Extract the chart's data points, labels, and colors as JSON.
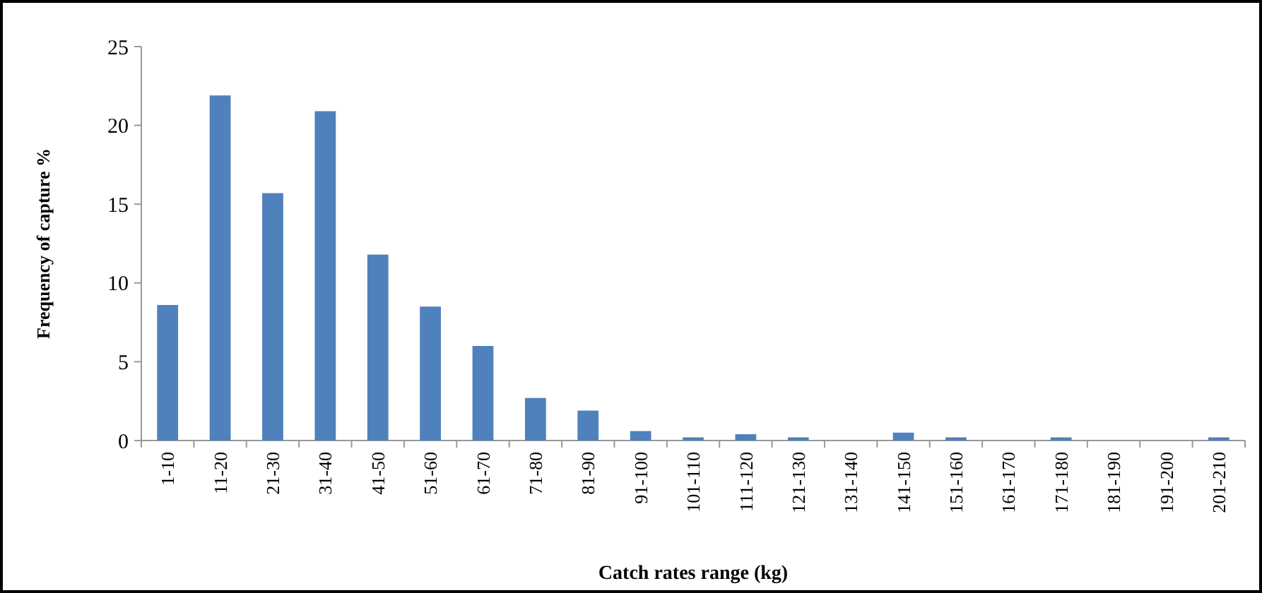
{
  "chart_data": {
    "type": "bar",
    "xlabel": "Catch rates range (kg)",
    "ylabel": "Frequency of capture %",
    "categories": [
      "1-10",
      "11-20",
      "21-30",
      "31-40",
      "41-50",
      "51-60",
      "61-70",
      "71-80",
      "81-90",
      "91-100",
      "101-110",
      "111-120",
      "121-130",
      "131-140",
      "141-150",
      "151-160",
      "161-170",
      "171-180",
      "181-190",
      "191-200",
      "201-210"
    ],
    "values": [
      8.6,
      21.9,
      15.7,
      20.9,
      11.8,
      8.5,
      6.0,
      2.7,
      1.9,
      0.6,
      0.2,
      0.4,
      0.2,
      0,
      0.5,
      0.2,
      0,
      0.2,
      0,
      0,
      0.2
    ],
    "color": "#4f81bd",
    "ylim": [
      0,
      25
    ],
    "yticks": [
      0,
      5,
      10,
      15,
      20,
      25
    ],
    "grid": false
  }
}
